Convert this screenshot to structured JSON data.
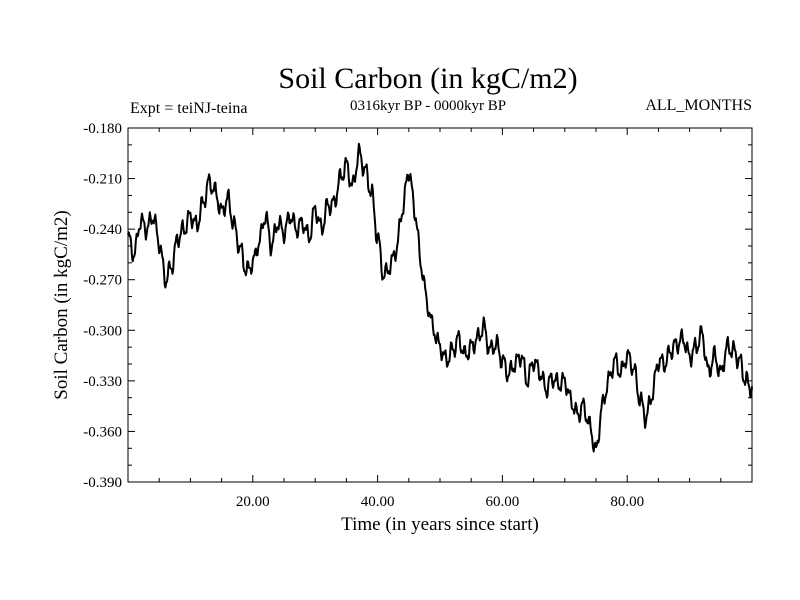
{
  "chart_data": {
    "type": "line",
    "title": "Soil Carbon (in kgC/m2)",
    "subtitle": "0316kyr BP - 0000kyr BP",
    "left_label": "Expt = teiNJ-teina",
    "right_label": "ALL_MONTHS",
    "xlabel": "Time (in years since start)",
    "ylabel": "Soil Carbon (in kgC/m2)",
    "xlim": [
      0,
      100
    ],
    "ylim": [
      -0.39,
      -0.18
    ],
    "xticks": [
      20,
      40,
      60,
      80
    ],
    "xtick_labels": [
      "20.00",
      "40.00",
      "60.00",
      "80.00"
    ],
    "yticks": [
      -0.18,
      -0.21,
      -0.24,
      -0.27,
      -0.3,
      -0.33,
      -0.36,
      -0.39
    ],
    "ytick_labels": [
      "-0.180",
      "-0.210",
      "-0.240",
      "-0.270",
      "-0.300",
      "-0.330",
      "-0.360",
      "-0.390"
    ],
    "grid": false,
    "series": [
      {
        "name": "Soil Carbon",
        "x": [
          0,
          1,
          2,
          3,
          4,
          5,
          6,
          7,
          8,
          9,
          10,
          11,
          12,
          13,
          14,
          15,
          16,
          17,
          18,
          19,
          20,
          21,
          22,
          23,
          24,
          25,
          26,
          27,
          28,
          29,
          30,
          31,
          32,
          33,
          34,
          35,
          36,
          37,
          38,
          39,
          40,
          41,
          42,
          43,
          44,
          45,
          46,
          47,
          48,
          49,
          50,
          51,
          52,
          53,
          54,
          55,
          56,
          57,
          58,
          59,
          60,
          61,
          62,
          63,
          64,
          65,
          66,
          67,
          68,
          69,
          70,
          71,
          72,
          73,
          74,
          75,
          76,
          77,
          78,
          79,
          80,
          81,
          82,
          83,
          84,
          85,
          86,
          87,
          88,
          89,
          90,
          91,
          92,
          93,
          94,
          95,
          96,
          97,
          98,
          99,
          100
        ],
        "values": [
          -0.245,
          -0.255,
          -0.235,
          -0.24,
          -0.232,
          -0.248,
          -0.27,
          -0.262,
          -0.245,
          -0.24,
          -0.232,
          -0.238,
          -0.225,
          -0.212,
          -0.218,
          -0.23,
          -0.222,
          -0.238,
          -0.252,
          -0.265,
          -0.26,
          -0.248,
          -0.232,
          -0.25,
          -0.236,
          -0.242,
          -0.232,
          -0.24,
          -0.236,
          -0.245,
          -0.228,
          -0.24,
          -0.226,
          -0.225,
          -0.21,
          -0.202,
          -0.215,
          -0.195,
          -0.205,
          -0.218,
          -0.245,
          -0.268,
          -0.262,
          -0.252,
          -0.228,
          -0.205,
          -0.23,
          -0.262,
          -0.285,
          -0.3,
          -0.31,
          -0.318,
          -0.312,
          -0.305,
          -0.315,
          -0.31,
          -0.305,
          -0.298,
          -0.312,
          -0.308,
          -0.318,
          -0.326,
          -0.32,
          -0.315,
          -0.33,
          -0.318,
          -0.325,
          -0.335,
          -0.328,
          -0.332,
          -0.33,
          -0.342,
          -0.35,
          -0.345,
          -0.357,
          -0.372,
          -0.345,
          -0.33,
          -0.318,
          -0.325,
          -0.315,
          -0.322,
          -0.34,
          -0.352,
          -0.338,
          -0.318,
          -0.32,
          -0.312,
          -0.308,
          -0.305,
          -0.316,
          -0.31,
          -0.302,
          -0.325,
          -0.315,
          -0.326,
          -0.31,
          -0.312,
          -0.318,
          -0.33,
          -0.335
        ]
      }
    ]
  }
}
